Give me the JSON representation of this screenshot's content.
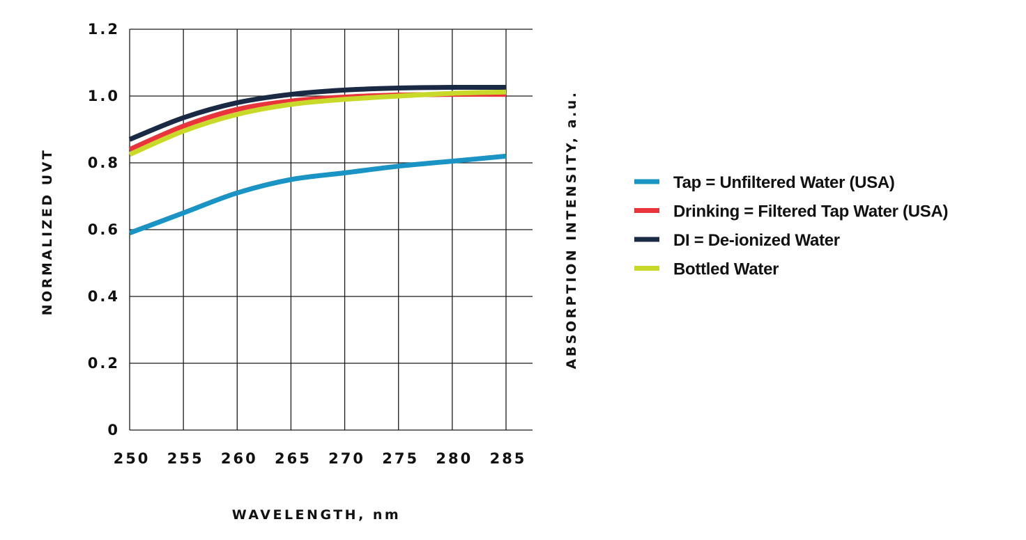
{
  "chart_data": {
    "type": "line",
    "title": "",
    "xlabel": "WAVELENGTH, nm",
    "ylabel": "NORMALIZED UVT",
    "ylabel_secondary": "ABSORPTION INTENSITY, a.u.",
    "xlim": [
      250,
      285
    ],
    "ylim": [
      0,
      1.2
    ],
    "x_ticks": [
      "250",
      "255",
      "260",
      "265",
      "270",
      "275",
      "280",
      "285"
    ],
    "y_ticks": [
      "0",
      "0.2",
      "0.4",
      "0.6",
      "0.8",
      "1.0",
      "1.2"
    ],
    "grid": true,
    "legend_position": "right",
    "x": [
      250,
      255,
      260,
      265,
      270,
      275,
      280,
      285
    ],
    "series": [
      {
        "name": "Tap = Unfiltered Water (USA)",
        "color": "#1a94c4",
        "values": [
          0.59,
          0.65,
          0.71,
          0.75,
          0.77,
          0.79,
          0.805,
          0.82
        ]
      },
      {
        "name": "Drinking = Filtered Tap Water (USA)",
        "color": "#e8343a",
        "values": [
          0.84,
          0.91,
          0.96,
          0.985,
          0.997,
          1.003,
          1.005,
          1.005
        ]
      },
      {
        "name": "DI = De-ionized Water",
        "color": "#1b2a44",
        "values": [
          0.87,
          0.935,
          0.98,
          1.005,
          1.018,
          1.024,
          1.026,
          1.026
        ]
      },
      {
        "name": "Bottled Water",
        "color": "#c8d92a",
        "values": [
          0.825,
          0.895,
          0.945,
          0.975,
          0.99,
          1.0,
          1.008,
          1.012
        ]
      }
    ]
  }
}
